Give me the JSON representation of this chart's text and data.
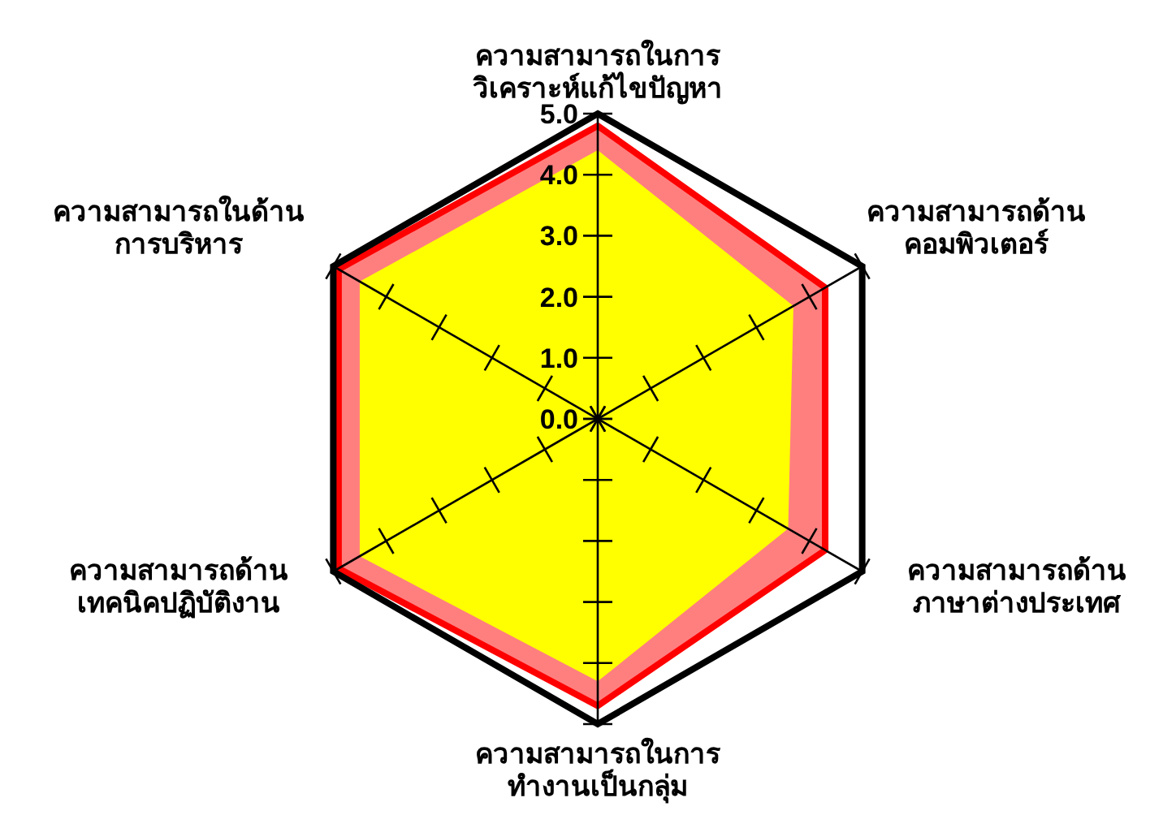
{
  "chart_data": {
    "type": "radar",
    "categories": [
      "ความสามารถในการ\nวิเคราะห์แก้ไขปัญหา",
      "ความสามารถด้าน\nคอมพิวเตอร์",
      "ความสามารถด้าน\nภาษาต่างประเทศ",
      "ความสามารถในการ\nทำงานเป็นกลุ่ม",
      "ความสามารถด้าน\nเทคนิคปฏิบัติงาน",
      "ความสามารถในด้าน\nการบริหาร"
    ],
    "series": [
      {
        "color": "#ff0000",
        "values": [
          4.8,
          4.3,
          4.3,
          4.7,
          4.9,
          4.9
        ]
      },
      {
        "color": "#ffff00",
        "values": [
          4.4,
          3.7,
          3.6,
          4.3,
          4.5,
          4.5
        ]
      }
    ],
    "ylim": [
      0,
      5
    ],
    "yticks": [
      {
        "value": 0,
        "label": "0.0"
      },
      {
        "value": 1,
        "label": "1.0"
      },
      {
        "value": 2,
        "label": "2.0"
      },
      {
        "value": 3,
        "label": "3.0"
      },
      {
        "value": 4,
        "label": "4.0"
      },
      {
        "value": 5,
        "label": "5.0"
      }
    ],
    "grid": true
  }
}
